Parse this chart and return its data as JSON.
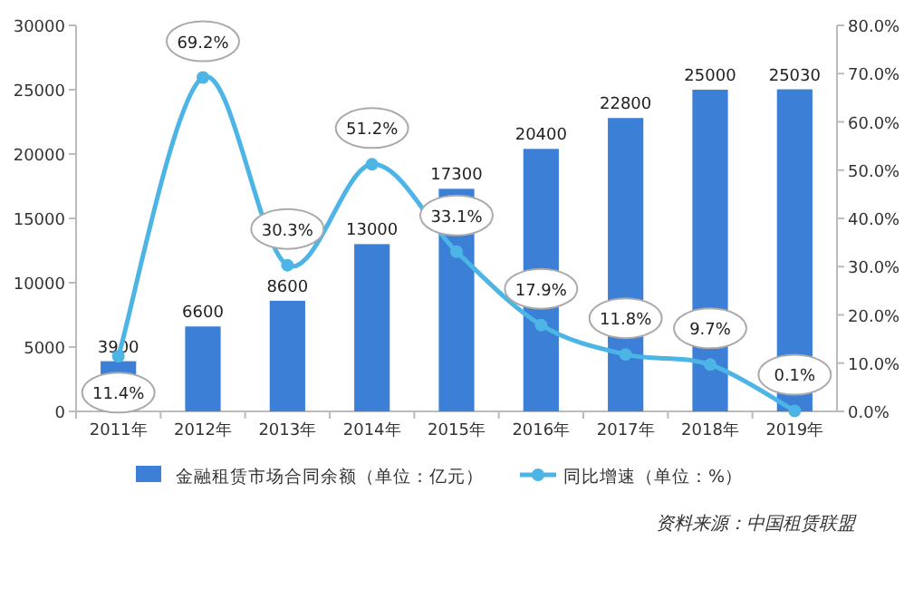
{
  "chart_data": {
    "type": "bar",
    "categories": [
      "2011年",
      "2012年",
      "2013年",
      "2014年",
      "2015年",
      "2016年",
      "2017年",
      "2018年",
      "2019年"
    ],
    "series": [
      {
        "name": "金融租赁市场合同余额（单位：亿元）",
        "color": "#3b7fd6",
        "values": [
          3900,
          6600,
          8600,
          13000,
          17300,
          20400,
          22800,
          25000,
          25030
        ]
      },
      {
        "name": "同比增速（单位：%）",
        "type": "line",
        "axis": "y2",
        "color": "#4db4e6",
        "marker": "circle",
        "values": [
          11.4,
          69.2,
          30.3,
          51.2,
          33.1,
          17.9,
          11.8,
          9.7,
          0.1
        ],
        "value_labels": [
          "11.4%",
          "69.2%",
          "30.3%",
          "51.2%",
          "33.1%",
          "17.9%",
          "11.8%",
          "9.7%",
          "0.1%"
        ]
      }
    ],
    "data_labels": true,
    "ylim": [
      0,
      30000
    ],
    "yticks": [
      0,
      5000,
      10000,
      15000,
      20000,
      25000,
      30000
    ],
    "y2lim": [
      0,
      80
    ],
    "y2ticks": [
      {
        "value": 0,
        "label": "0.0%"
      },
      {
        "value": 10,
        "label": "10.0%"
      },
      {
        "value": 20,
        "label": "20.0%"
      },
      {
        "value": 30,
        "label": "30.0%"
      },
      {
        "value": 40,
        "label": "40.0%"
      },
      {
        "value": 50,
        "label": "50.0%"
      },
      {
        "value": 60,
        "label": "60.0%"
      },
      {
        "value": 70,
        "label": "70.0%"
      },
      {
        "value": 80,
        "label": "80.0%"
      }
    ],
    "legend": "bottom",
    "grid": false,
    "annotations": [
      "资料来源：中国租赁联盟"
    ]
  }
}
